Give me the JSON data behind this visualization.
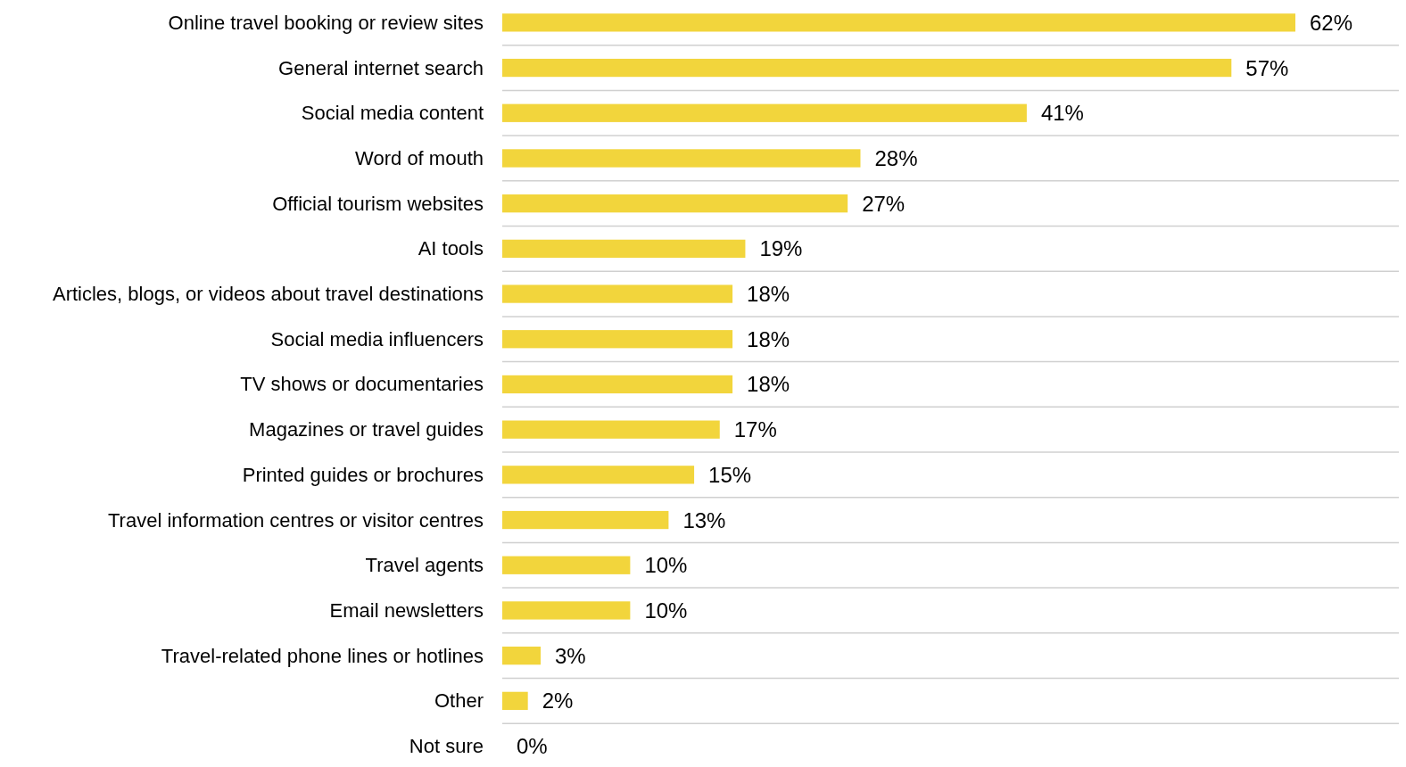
{
  "chart_data": {
    "type": "bar",
    "orientation": "horizontal",
    "categories": [
      "Online travel booking or review sites",
      "General internet search",
      "Social media content",
      "Word of mouth",
      "Official tourism websites",
      "AI tools",
      "Articles, blogs, or videos about travel destinations",
      "Social media influencers",
      "TV shows or documentaries",
      "Magazines or travel guides",
      "Printed guides or brochures",
      "Travel information centres or visitor centres",
      "Travel agents",
      "Email newsletters",
      "Travel-related phone lines or hotlines",
      "Other",
      "Not sure"
    ],
    "values": [
      62,
      57,
      41,
      28,
      27,
      19,
      18,
      18,
      18,
      17,
      15,
      13,
      10,
      10,
      3,
      2,
      0
    ],
    "value_labels": [
      "62%",
      "57%",
      "41%",
      "28%",
      "27%",
      "19%",
      "18%",
      "18%",
      "18%",
      "17%",
      "15%",
      "13%",
      "10%",
      "10%",
      "3%",
      "2%",
      "0%"
    ],
    "color": "#f2d53c",
    "grid": "y"
  }
}
